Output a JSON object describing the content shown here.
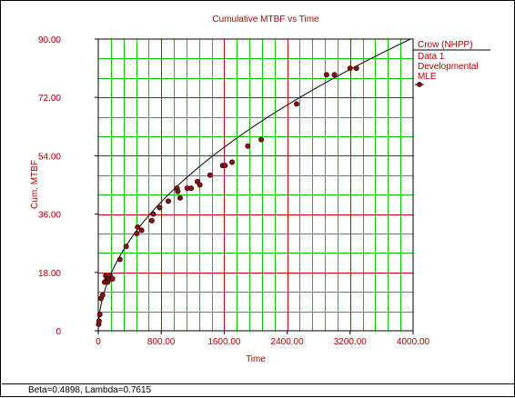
{
  "chart_data": {
    "type": "scatter",
    "title": "Cumulative MTBF vs Time",
    "xlabel": "Time",
    "ylabel": "Cum. MTBF",
    "xlim": [
      0,
      4000
    ],
    "ylim": [
      0,
      90
    ],
    "x_ticks": [
      0,
      800,
      1600,
      2400,
      3200,
      4000
    ],
    "x_tick_labels": [
      "0",
      "800.00",
      "1600.00",
      "2400.00",
      "3200.00",
      "4000.00"
    ],
    "y_ticks": [
      0,
      18,
      36,
      54,
      72,
      90
    ],
    "y_tick_labels": [
      "0",
      "18.00",
      "36.00",
      "54.00",
      "72.00",
      "90.00"
    ],
    "minor_x_step": 160,
    "minor_y_step": 6,
    "grid": true,
    "legend_position": "right",
    "legend": {
      "title": "Crow (NHPP)",
      "lines": [
        "Data 1",
        "Developmental",
        "MLE"
      ]
    },
    "series": [
      {
        "name": "Data 1",
        "kind": "points",
        "x": [
          5,
          10,
          20,
          35,
          55,
          80,
          95,
          110,
          120,
          125,
          135,
          150,
          170,
          180,
          275,
          355,
          490,
          500,
          550,
          680,
          700,
          780,
          890,
          1000,
          1010,
          1040,
          1130,
          1180,
          1260,
          1290,
          1420,
          1580,
          1610,
          1700,
          1900,
          2070,
          2520,
          2900,
          3000,
          3200,
          3280
        ],
        "y": [
          2,
          3,
          5,
          10,
          11,
          15,
          17,
          16,
          15,
          16,
          16,
          17,
          16,
          16,
          22,
          26,
          30,
          32,
          31,
          34,
          36,
          38,
          40,
          44,
          43,
          41,
          44,
          44,
          46,
          45,
          48,
          51,
          51,
          52,
          57,
          59,
          70,
          79,
          79,
          81,
          81
        ]
      },
      {
        "name": "MLE",
        "kind": "line",
        "beta": 0.4898,
        "lambda": 0.7615
      }
    ],
    "annotation": "Beta=0.4898, Lambda=0.7615"
  },
  "colors": {
    "grid_minor": "#00cc00",
    "grid_major": "#cc0000",
    "plot_background": "#ffffff",
    "text": "#b00000",
    "points_fill": "#8b1010",
    "points_stroke": "#3a0000",
    "fit_line": "#000000"
  }
}
